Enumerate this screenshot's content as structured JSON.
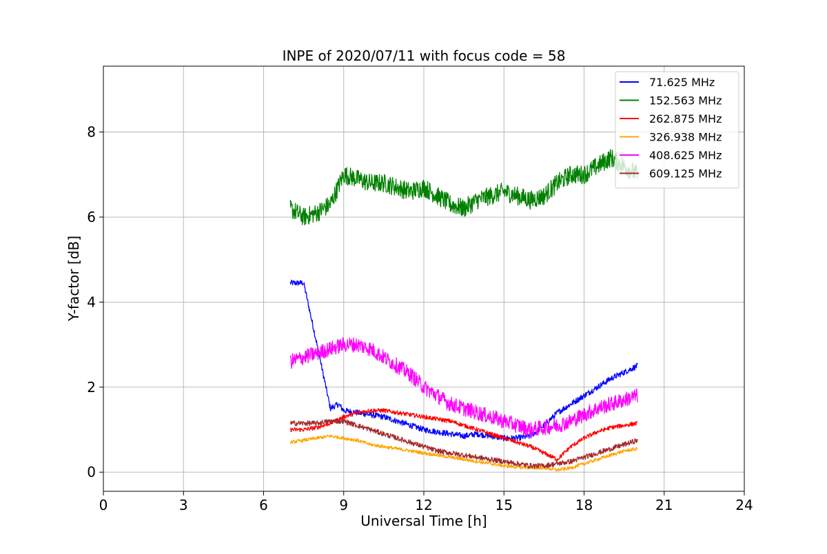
{
  "chart_data": {
    "type": "line",
    "title": "INPE of 2020/07/11 with focus code = 58",
    "xlabel": "Universal Time [h]",
    "ylabel": "Y-factor [dB]",
    "xlim": [
      0,
      24
    ],
    "ylim": [
      -0.45,
      9.55
    ],
    "xticks": [
      0,
      3,
      6,
      9,
      12,
      15,
      18,
      21,
      24
    ],
    "yticks": [
      0,
      2,
      4,
      6,
      8
    ],
    "grid": true,
    "legend_position": "top-right",
    "series": [
      {
        "name": "  71.625 MHz",
        "color": "#0000ff",
        "noise": 0.07,
        "x": [
          7.0,
          7.5,
          8.0,
          8.5,
          8.8,
          9.0,
          9.5,
          10.0,
          10.5,
          11.0,
          11.5,
          12.0,
          12.5,
          13.0,
          13.5,
          14.0,
          14.5,
          15.0,
          15.5,
          16.0,
          16.5,
          17.0,
          17.5,
          18.0,
          18.5,
          19.0,
          19.5,
          20.0
        ],
        "y": [
          4.45,
          4.45,
          3.0,
          1.5,
          1.6,
          1.45,
          1.4,
          1.35,
          1.3,
          1.2,
          1.1,
          1.0,
          0.95,
          0.9,
          0.85,
          0.9,
          0.85,
          0.8,
          0.8,
          0.85,
          1.1,
          1.4,
          1.6,
          1.8,
          2.0,
          2.2,
          2.35,
          2.5
        ]
      },
      {
        "name": "152.563 MHz",
        "color": "#008000",
        "noise": 0.22,
        "x": [
          7.0,
          7.5,
          8.0,
          8.5,
          9.0,
          9.5,
          10.0,
          10.5,
          11.0,
          11.5,
          12.0,
          12.5,
          13.0,
          13.5,
          14.0,
          14.5,
          15.0,
          15.5,
          16.0,
          16.5,
          17.0,
          17.5,
          18.0,
          18.5,
          19.0,
          19.5,
          20.0
        ],
        "y": [
          6.2,
          6.0,
          6.1,
          6.3,
          7.0,
          6.9,
          6.8,
          6.8,
          6.7,
          6.6,
          6.7,
          6.5,
          6.3,
          6.2,
          6.4,
          6.5,
          6.6,
          6.5,
          6.4,
          6.5,
          6.8,
          7.0,
          7.0,
          7.2,
          7.4,
          7.2,
          7.0
        ]
      },
      {
        "name": "262.875 MHz",
        "color": "#ff0000",
        "noise": 0.05,
        "x": [
          7.0,
          7.5,
          8.0,
          8.5,
          9.0,
          9.5,
          10.0,
          10.5,
          11.0,
          11.5,
          12.0,
          12.5,
          13.0,
          13.5,
          14.0,
          14.5,
          15.0,
          15.5,
          16.0,
          16.5,
          17.0,
          17.5,
          18.0,
          18.5,
          19.0,
          19.5,
          20.0
        ],
        "y": [
          1.0,
          1.0,
          1.05,
          1.15,
          1.3,
          1.4,
          1.45,
          1.45,
          1.4,
          1.35,
          1.3,
          1.25,
          1.2,
          1.1,
          1.0,
          0.9,
          0.8,
          0.7,
          0.6,
          0.45,
          0.3,
          0.6,
          0.8,
          0.95,
          1.05,
          1.1,
          1.15
        ]
      },
      {
        "name": "326.938 MHz",
        "color": "#ffa500",
        "noise": 0.04,
        "x": [
          7.0,
          7.5,
          8.0,
          8.5,
          9.0,
          9.5,
          10.0,
          10.5,
          11.0,
          11.5,
          12.0,
          12.5,
          13.0,
          13.5,
          14.0,
          14.5,
          15.0,
          15.5,
          16.0,
          16.5,
          17.0,
          17.5,
          18.0,
          18.5,
          19.0,
          19.5,
          20.0
        ],
        "y": [
          0.7,
          0.75,
          0.8,
          0.85,
          0.8,
          0.75,
          0.65,
          0.6,
          0.55,
          0.5,
          0.45,
          0.4,
          0.35,
          0.3,
          0.25,
          0.2,
          0.15,
          0.12,
          0.1,
          0.1,
          0.05,
          0.1,
          0.2,
          0.3,
          0.4,
          0.5,
          0.55
        ]
      },
      {
        "name": "408.625 MHz",
        "color": "#ff00ff",
        "noise": 0.18,
        "x": [
          7.0,
          7.5,
          8.0,
          8.5,
          9.0,
          9.5,
          10.0,
          10.5,
          11.0,
          11.5,
          12.0,
          12.5,
          13.0,
          13.5,
          14.0,
          14.5,
          15.0,
          15.5,
          16.0,
          16.5,
          17.0,
          17.5,
          18.0,
          18.5,
          19.0,
          19.5,
          20.0
        ],
        "y": [
          2.6,
          2.7,
          2.8,
          2.9,
          3.0,
          3.0,
          2.9,
          2.7,
          2.5,
          2.3,
          2.0,
          1.8,
          1.6,
          1.5,
          1.4,
          1.3,
          1.2,
          1.1,
          1.0,
          1.05,
          1.1,
          1.2,
          1.35,
          1.5,
          1.6,
          1.7,
          1.8
        ]
      },
      {
        "name": "609.125 MHz",
        "color": "#a52a2a",
        "noise": 0.06,
        "x": [
          7.0,
          7.5,
          8.0,
          8.5,
          9.0,
          9.5,
          10.0,
          10.5,
          11.0,
          11.5,
          12.0,
          12.5,
          13.0,
          13.5,
          14.0,
          14.5,
          15.0,
          15.5,
          16.0,
          16.5,
          17.0,
          17.5,
          18.0,
          18.5,
          19.0,
          19.5,
          20.0
        ],
        "y": [
          1.15,
          1.15,
          1.15,
          1.2,
          1.2,
          1.1,
          1.0,
          0.9,
          0.8,
          0.7,
          0.6,
          0.5,
          0.45,
          0.4,
          0.35,
          0.3,
          0.25,
          0.2,
          0.15,
          0.15,
          0.2,
          0.25,
          0.35,
          0.45,
          0.55,
          0.65,
          0.75
        ]
      }
    ]
  }
}
